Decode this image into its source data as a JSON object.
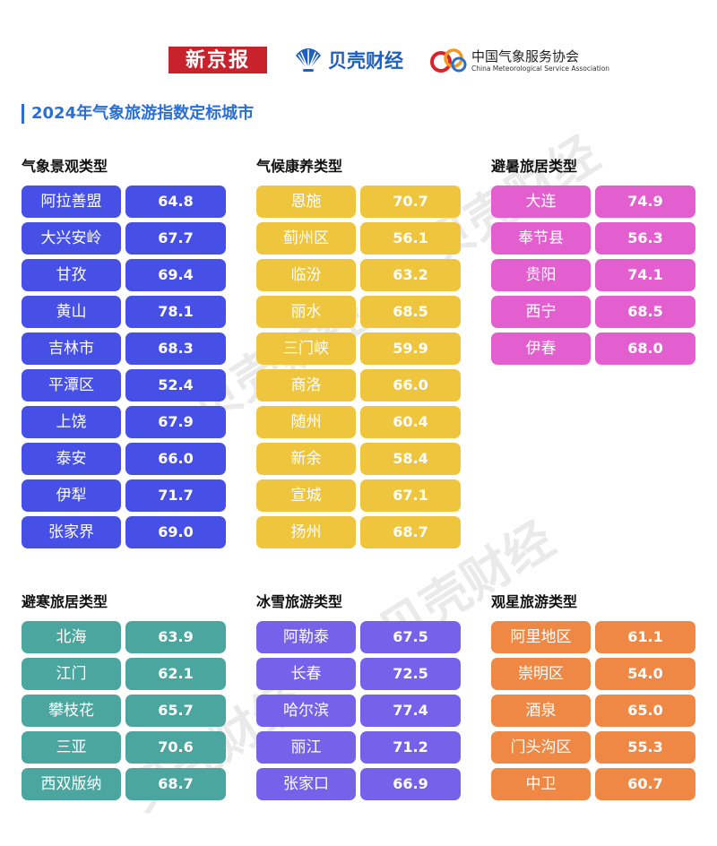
{
  "logos": {
    "xinjingbao": "新京报",
    "beike": "贝壳财经",
    "cma_cn": "中国气象服务协会",
    "cma_en": "China Meteorological Service Association"
  },
  "title": "2024年气象旅游指数定标城市",
  "watermark": "贝壳财经",
  "colors": {
    "title_accent": "#2a6fd6",
    "landscape": "#4750e6",
    "climate_health": "#eec53c",
    "summer_retreat": "#e35fd0",
    "winter_retreat": "#4aa69f",
    "ice_snow": "#7561ea",
    "stargazing": "#ef8845"
  },
  "categories": [
    {
      "title": "气象景观类型",
      "rows": [
        {
          "city": "阿拉善盟",
          "value": "64.8"
        },
        {
          "city": "大兴安岭",
          "value": "67.7"
        },
        {
          "city": "甘孜",
          "value": "69.4"
        },
        {
          "city": "黄山",
          "value": "78.1"
        },
        {
          "city": "吉林市",
          "value": "68.3"
        },
        {
          "city": "平潭区",
          "value": "52.4"
        },
        {
          "city": "上饶",
          "value": "67.9"
        },
        {
          "city": "泰安",
          "value": "66.0"
        },
        {
          "city": "伊犁",
          "value": "71.7"
        },
        {
          "city": "张家界",
          "value": "69.0"
        }
      ]
    },
    {
      "title": "气候康养类型",
      "rows": [
        {
          "city": "恩施",
          "value": "70.7"
        },
        {
          "city": "蓟州区",
          "value": "56.1"
        },
        {
          "city": "临汾",
          "value": "63.2"
        },
        {
          "city": "丽水",
          "value": "68.5"
        },
        {
          "city": "三门峡",
          "value": "59.9"
        },
        {
          "city": "商洛",
          "value": "66.0"
        },
        {
          "city": "随州",
          "value": "60.4"
        },
        {
          "city": "新余",
          "value": "58.4"
        },
        {
          "city": "宣城",
          "value": "67.1"
        },
        {
          "city": "扬州",
          "value": "68.7"
        }
      ]
    },
    {
      "title": "避暑旅居类型",
      "rows": [
        {
          "city": "大连",
          "value": "74.9"
        },
        {
          "city": "奉节县",
          "value": "56.3"
        },
        {
          "city": "贵阳",
          "value": "74.1"
        },
        {
          "city": "西宁",
          "value": "68.5"
        },
        {
          "city": "伊春",
          "value": "68.0"
        }
      ]
    },
    {
      "title": "避寒旅居类型",
      "rows": [
        {
          "city": "北海",
          "value": "63.9"
        },
        {
          "city": "江门",
          "value": "62.1"
        },
        {
          "city": "攀枝花",
          "value": "65.7"
        },
        {
          "city": "三亚",
          "value": "70.6"
        },
        {
          "city": "西双版纳",
          "value": "68.7"
        }
      ]
    },
    {
      "title": "冰雪旅游类型",
      "rows": [
        {
          "city": "阿勒泰",
          "value": "67.5"
        },
        {
          "city": "长春",
          "value": "72.5"
        },
        {
          "city": "哈尔滨",
          "value": "77.4"
        },
        {
          "city": "丽江",
          "value": "71.2"
        },
        {
          "city": "张家口",
          "value": "66.9"
        }
      ]
    },
    {
      "title": "观星旅游类型",
      "rows": [
        {
          "city": "阿里地区",
          "value": "61.1"
        },
        {
          "city": "崇明区",
          "value": "54.0"
        },
        {
          "city": "酒泉",
          "value": "65.0"
        },
        {
          "city": "门头沟区",
          "value": "55.3"
        },
        {
          "city": "中卫",
          "value": "60.7"
        }
      ]
    }
  ]
}
